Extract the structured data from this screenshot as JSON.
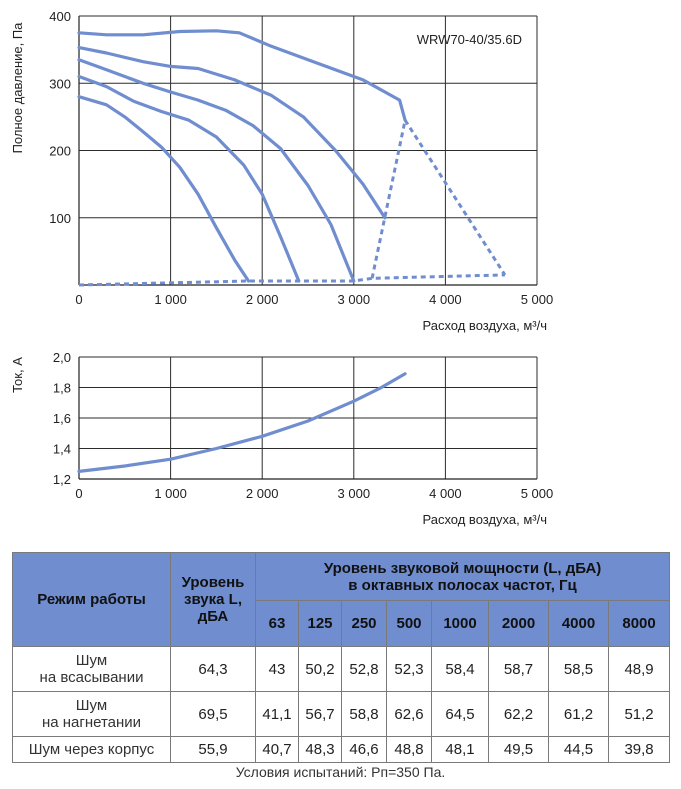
{
  "chart_data": [
    {
      "type": "line",
      "model_label": "WRW70-40/35.6D",
      "xlabel": "Расход воздуха, м³/ч",
      "ylabel": "Полное давление, Па",
      "xlim": [
        0,
        5000
      ],
      "ylim": [
        0,
        400
      ],
      "xticks": [
        0,
        1000,
        2000,
        3000,
        4000,
        5000
      ],
      "xtick_labels": [
        "0",
        "1 000",
        "2 000",
        "3 000",
        "4 000",
        "5 000"
      ],
      "yticks": [
        100,
        200,
        300,
        400
      ],
      "ytick_labels": [
        "100",
        "200",
        "300",
        "400"
      ],
      "grid": true,
      "series": [
        {
          "x": [
            0,
            300,
            700,
            1100,
            1500,
            1750,
            2100,
            2600,
            3100,
            3500,
            3560
          ],
          "y": [
            375,
            372,
            372,
            377,
            378,
            375,
            355,
            330,
            305,
            275,
            245
          ]
        },
        {
          "x": [
            0,
            300,
            700,
            1000,
            1300,
            1700,
            2100,
            2450,
            2800,
            3100,
            3340
          ],
          "y": [
            353,
            345,
            332,
            325,
            322,
            305,
            282,
            250,
            200,
            150,
            100
          ]
        },
        {
          "x": [
            0,
            300,
            700,
            1000,
            1300,
            1600,
            1900,
            2200,
            2500,
            2750,
            3000
          ],
          "y": [
            335,
            320,
            300,
            287,
            275,
            260,
            237,
            203,
            148,
            90,
            6
          ]
        },
        {
          "x": [
            0,
            300,
            600,
            900,
            1200,
            1500,
            1800,
            2000,
            2200,
            2400
          ],
          "y": [
            310,
            295,
            273,
            258,
            245,
            220,
            178,
            135,
            72,
            6
          ]
        },
        {
          "x": [
            0,
            300,
            500,
            700,
            900,
            1100,
            1300,
            1500,
            1700,
            1850
          ],
          "y": [
            280,
            268,
            250,
            228,
            205,
            175,
            135,
            85,
            37,
            6
          ]
        }
      ],
      "boundary_dashed": [
        {
          "x": [
            0,
            1850,
            2400,
            3000,
            3200,
            4650
          ],
          "y": [
            0,
            6,
            6,
            6,
            10,
            15
          ]
        },
        {
          "x": [
            3200,
            3560
          ],
          "y": [
            10,
            245
          ]
        },
        {
          "x": [
            3560,
            4650
          ],
          "y": [
            245,
            15
          ]
        }
      ],
      "color": "#6f8dcf"
    },
    {
      "type": "line",
      "xlabel": "Расход воздуха, м³/ч",
      "ylabel": "Ток, А",
      "xlim": [
        0,
        5000
      ],
      "ylim": [
        1.2,
        2.0
      ],
      "xticks": [
        0,
        1000,
        2000,
        3000,
        4000,
        5000
      ],
      "xtick_labels": [
        "0",
        "1 000",
        "2 000",
        "3 000",
        "4 000",
        "5 000"
      ],
      "yticks": [
        1.2,
        1.4,
        1.6,
        1.8,
        2.0
      ],
      "ytick_labels": [
        "1,2",
        "1,4",
        "1,6",
        "1,8",
        "2,0"
      ],
      "grid": true,
      "series": [
        {
          "x": [
            0,
            500,
            1000,
            1500,
            2000,
            2500,
            3000,
            3300,
            3560
          ],
          "y": [
            1.25,
            1.285,
            1.33,
            1.4,
            1.48,
            1.58,
            1.71,
            1.8,
            1.89
          ]
        }
      ],
      "color": "#6f8dcf"
    },
    {
      "type": "table",
      "header": {
        "mode": "Режим работы",
        "level": "Уровень звука L, дБА",
        "power_line1": "Уровень звуковой мощности (L, дБА)",
        "power_line2": "в октавных полосах частот, Гц",
        "bands": [
          "63",
          "125",
          "250",
          "500",
          "1000",
          "2000",
          "4000",
          "8000"
        ]
      },
      "rows": [
        {
          "label_line1": "Шум",
          "label_line2": "на всасывании",
          "level": "64,3",
          "values": [
            "43",
            "50,2",
            "52,8",
            "52,3",
            "58,4",
            "58,7",
            "58,5",
            "48,9"
          ]
        },
        {
          "label_line1": "Шум",
          "label_line2": "на нагнетании",
          "level": "69,5",
          "values": [
            "41,1",
            "56,7",
            "58,8",
            "62,6",
            "64,5",
            "62,2",
            "61,2",
            "51,2"
          ]
        },
        {
          "label_line1": "Шум через корпус",
          "label_line2": "",
          "level": "55,9",
          "values": [
            "40,7",
            "48,3",
            "46,6",
            "48,8",
            "48,1",
            "49,5",
            "44,5",
            "39,8"
          ]
        }
      ],
      "note": "Условия испытаний: Рп=350 Па."
    }
  ]
}
